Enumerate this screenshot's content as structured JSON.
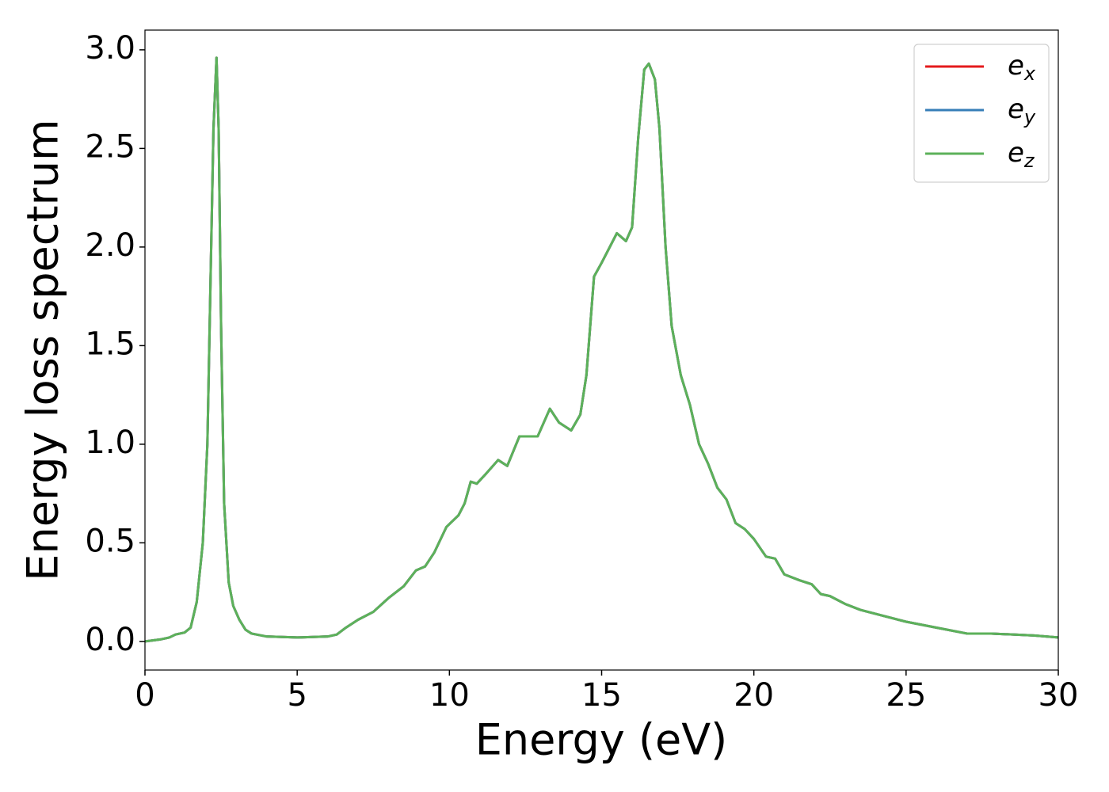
{
  "chart_data": {
    "type": "line",
    "xlabel": "Energy (eV)",
    "ylabel": "Energy loss spectrum",
    "x": [
      0,
      0.5,
      0.8,
      1.0,
      1.3,
      1.5,
      1.7,
      1.9,
      2.05,
      2.15,
      2.25,
      2.35,
      2.42,
      2.5,
      2.6,
      2.75,
      2.9,
      3.1,
      3.3,
      3.5,
      4,
      5,
      6,
      6.3,
      6.6,
      7,
      7.5,
      8,
      8.5,
      8.9,
      9.2,
      9.5,
      9.9,
      10.3,
      10.5,
      10.7,
      10.9,
      11.2,
      11.6,
      11.9,
      12.3,
      12.6,
      12.9,
      13.3,
      13.6,
      14.0,
      14.3,
      14.5,
      14.75,
      15.0,
      15.2,
      15.5,
      15.8,
      16.0,
      16.2,
      16.4,
      16.55,
      16.75,
      16.9,
      17.1,
      17.3,
      17.6,
      17.9,
      18.2,
      18.5,
      18.8,
      19.1,
      19.4,
      19.7,
      20.0,
      20.4,
      20.7,
      21.0,
      21.5,
      21.9,
      22.2,
      22.5,
      23,
      23.5,
      24,
      25,
      26,
      27,
      27.8,
      28.5,
      29.2,
      30
    ],
    "series": [
      {
        "name": "ex",
        "color": "#e41a1c",
        "values": [
          0,
          0.01,
          0.02,
          0.035,
          0.045,
          0.07,
          0.2,
          0.5,
          1.0,
          1.8,
          2.6,
          2.96,
          2.6,
          1.6,
          0.7,
          0.3,
          0.18,
          0.11,
          0.06,
          0.04,
          0.025,
          0.02,
          0.025,
          0.035,
          0.07,
          0.11,
          0.15,
          0.22,
          0.28,
          0.36,
          0.38,
          0.45,
          0.58,
          0.64,
          0.7,
          0.81,
          0.8,
          0.85,
          0.92,
          0.89,
          1.04,
          1.04,
          1.04,
          1.18,
          1.11,
          1.07,
          1.15,
          1.35,
          1.85,
          1.92,
          1.98,
          2.07,
          2.03,
          2.1,
          2.55,
          2.9,
          2.93,
          2.85,
          2.6,
          2.0,
          1.6,
          1.35,
          1.2,
          1.0,
          0.9,
          0.78,
          0.72,
          0.6,
          0.57,
          0.52,
          0.43,
          0.42,
          0.34,
          0.31,
          0.29,
          0.24,
          0.23,
          0.19,
          0.16,
          0.14,
          0.1,
          0.07,
          0.04,
          0.04,
          0.035,
          0.03,
          0.02
        ]
      },
      {
        "name": "ey",
        "color": "#377eb8",
        "values": [
          0,
          0.01,
          0.02,
          0.035,
          0.045,
          0.07,
          0.2,
          0.5,
          1.0,
          1.8,
          2.6,
          2.96,
          2.6,
          1.6,
          0.7,
          0.3,
          0.18,
          0.11,
          0.06,
          0.04,
          0.025,
          0.02,
          0.025,
          0.035,
          0.07,
          0.11,
          0.15,
          0.22,
          0.28,
          0.36,
          0.38,
          0.45,
          0.58,
          0.64,
          0.7,
          0.81,
          0.8,
          0.85,
          0.92,
          0.89,
          1.04,
          1.04,
          1.04,
          1.18,
          1.11,
          1.07,
          1.15,
          1.35,
          1.85,
          1.92,
          1.98,
          2.07,
          2.03,
          2.1,
          2.55,
          2.9,
          2.93,
          2.85,
          2.6,
          2.0,
          1.6,
          1.35,
          1.2,
          1.0,
          0.9,
          0.78,
          0.72,
          0.6,
          0.57,
          0.52,
          0.43,
          0.42,
          0.34,
          0.31,
          0.29,
          0.24,
          0.23,
          0.19,
          0.16,
          0.14,
          0.1,
          0.07,
          0.04,
          0.04,
          0.035,
          0.03,
          0.02
        ]
      },
      {
        "name": "ez",
        "color": "#5cb15a",
        "values": [
          0,
          0.01,
          0.02,
          0.035,
          0.045,
          0.07,
          0.2,
          0.5,
          1.0,
          1.8,
          2.6,
          2.96,
          2.6,
          1.6,
          0.7,
          0.3,
          0.18,
          0.11,
          0.06,
          0.04,
          0.025,
          0.02,
          0.025,
          0.035,
          0.07,
          0.11,
          0.15,
          0.22,
          0.28,
          0.36,
          0.38,
          0.45,
          0.58,
          0.64,
          0.7,
          0.81,
          0.8,
          0.85,
          0.92,
          0.89,
          1.04,
          1.04,
          1.04,
          1.18,
          1.11,
          1.07,
          1.15,
          1.35,
          1.85,
          1.92,
          1.98,
          2.07,
          2.03,
          2.1,
          2.55,
          2.9,
          2.93,
          2.85,
          2.6,
          2.0,
          1.6,
          1.35,
          1.2,
          1.0,
          0.9,
          0.78,
          0.72,
          0.6,
          0.57,
          0.52,
          0.43,
          0.42,
          0.34,
          0.31,
          0.29,
          0.24,
          0.23,
          0.19,
          0.16,
          0.14,
          0.1,
          0.07,
          0.04,
          0.04,
          0.035,
          0.03,
          0.02
        ]
      }
    ],
    "xlim": [
      0,
      30
    ],
    "xticks": [
      0,
      5,
      10,
      15,
      20,
      25,
      30
    ],
    "ylim": [
      -0.145,
      3.1
    ],
    "yticks": [
      {
        "value": 0,
        "label": "0.0"
      },
      0.5,
      {
        "value": 1,
        "label": "1.0"
      },
      1.5,
      {
        "value": 2,
        "label": "2.0"
      },
      2.5,
      {
        "value": 3,
        "label": "3.0"
      }
    ],
    "grid": false,
    "legend": "upper right"
  }
}
